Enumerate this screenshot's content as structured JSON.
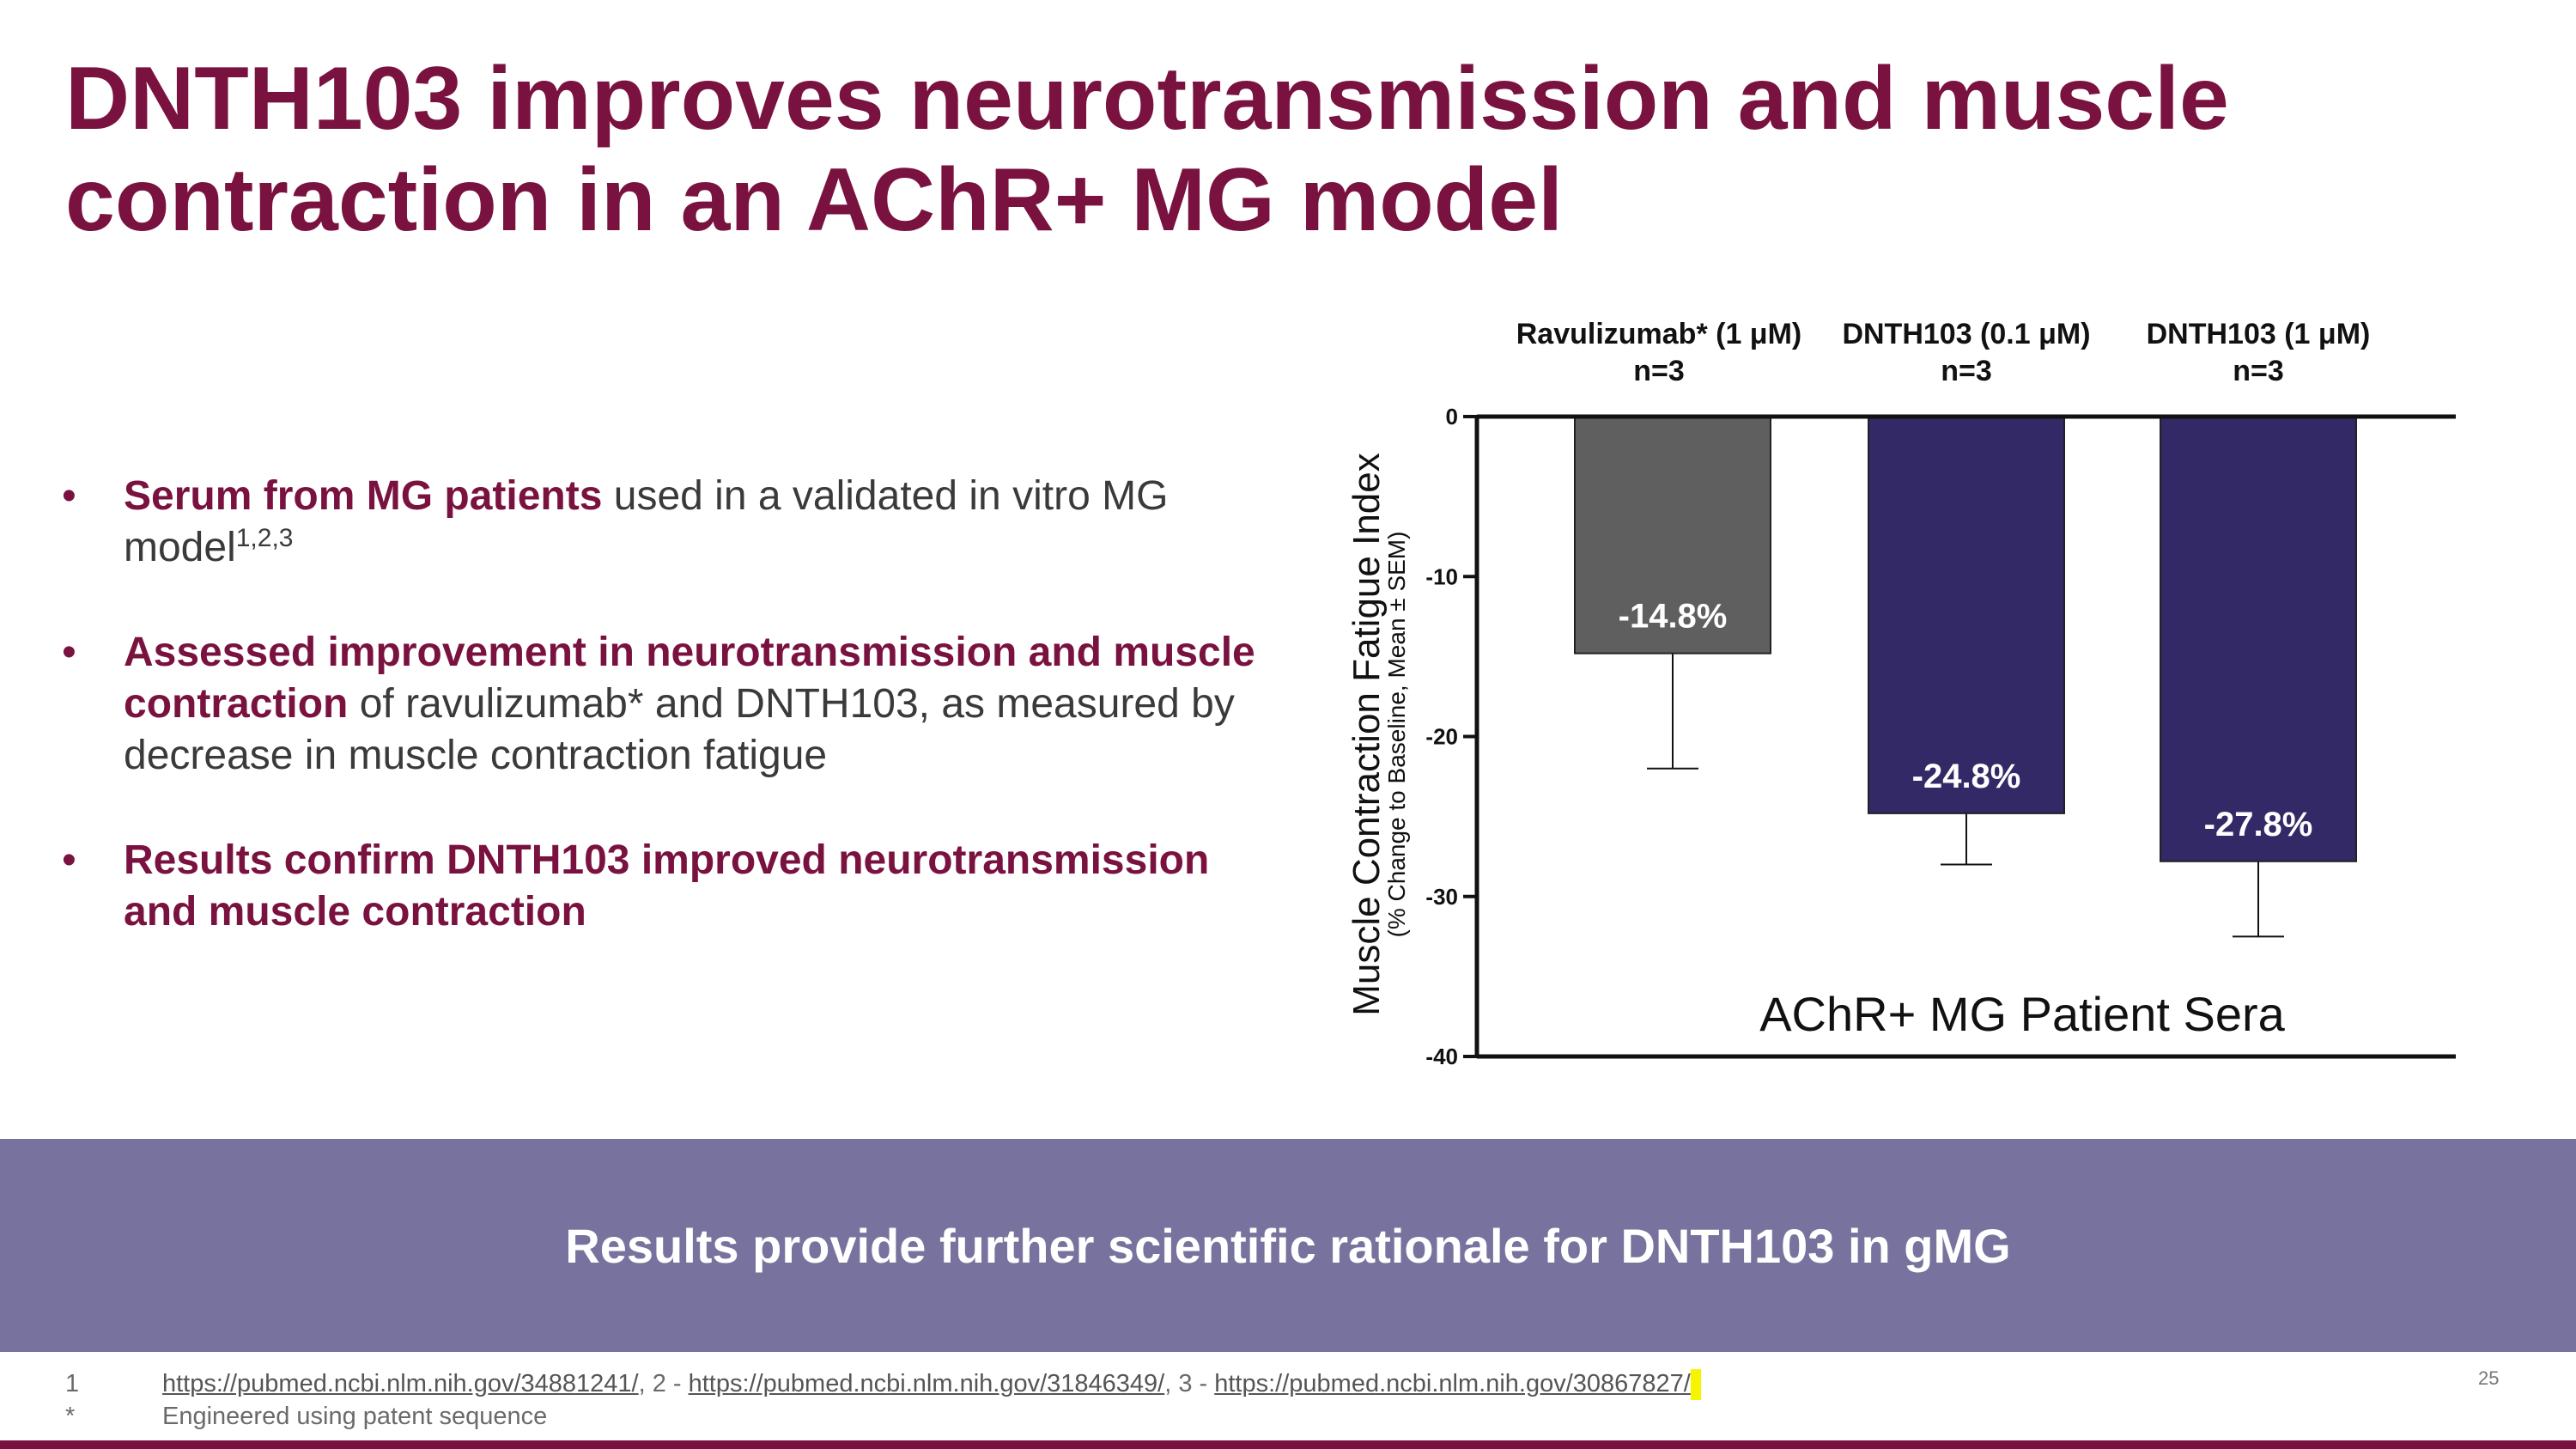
{
  "slide": {
    "title": "DNTH103 improves neurotransmission and muscle contraction in an AChR+ MG model",
    "bullets": [
      {
        "highlight": "Serum from MG patients",
        "text": " used in a validated in vitro MG model",
        "superscript": "1,2,3"
      },
      {
        "highlight": "Assessed improvement in neurotransmission and muscle contraction",
        "text": " of ravulizumab* and DNTH103, as measured by decrease in muscle contraction fatigue",
        "superscript": ""
      },
      {
        "highlight": "Results confirm DNTH103 improved neurotransmission and muscle contraction",
        "text": "",
        "superscript": ""
      }
    ],
    "banner": "Results provide further scientific rationale for DNTH103 in gMG",
    "footnotes": {
      "mark1": "1",
      "link1": "https://pubmed.ncbi.nlm.nih.gov/34881241/",
      "sep1": ", 2 - ",
      "link2": "https://pubmed.ncbi.nlm.nih.gov/31846349/",
      "sep2": ", 3 - ",
      "link3": "https://pubmed.ncbi.nlm.nih.gov/30867827/",
      "mark2": "*",
      "note2": "Engineered using patent sequence"
    },
    "page_number": "25",
    "colors": {
      "brand": "#7a1240",
      "banner": "#78739e",
      "bar_gray": "#5f5f5f",
      "bar_navy": "#332966"
    }
  },
  "chart_data": {
    "type": "bar",
    "categories": [
      "Ravulizumab* (1 μM)",
      "DNTH103 (0.1 μM)",
      "DNTH103 (1 μM)"
    ],
    "sample_sizes": [
      "n=3",
      "n=3",
      "n=3"
    ],
    "values": [
      -14.8,
      -24.8,
      -27.8
    ],
    "error_lower": [
      -22.0,
      -28.0,
      -32.5
    ],
    "value_labels": [
      "-14.8%",
      "-24.8%",
      "-27.8%"
    ],
    "bar_colors": [
      "#5f5f5f",
      "#332966",
      "#332966"
    ],
    "ylabel": "Muscle Contraction Fatigue Index",
    "ylabel_sub": "(% Change to Baseline, Mean ± SEM)",
    "annotation": "AChR+ MG Patient Sera",
    "yticks": [
      0,
      -10,
      -20,
      -30,
      -40
    ],
    "ylim": [
      -40,
      0
    ],
    "grid": false
  }
}
